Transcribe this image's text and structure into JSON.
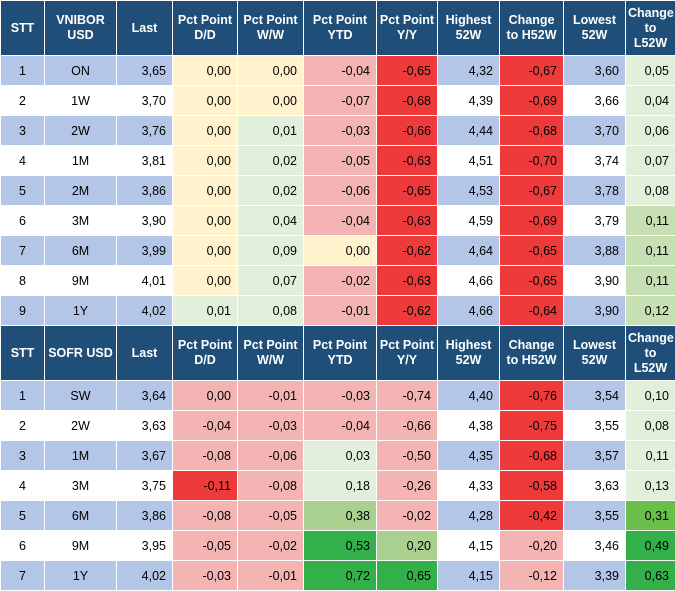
{
  "tables": [
    {
      "headers": [
        "STT",
        "VNIBOR USD",
        "Last",
        "Pct Point D/D",
        "Pct Point W/W",
        "Pct Point YTD",
        "Pct Point Y/Y",
        "Highest 52W",
        "Change to H52W",
        "Lowest 52W",
        "Change to L52W"
      ],
      "rows": [
        [
          "1",
          "ON",
          "3,65",
          "0,00",
          "0,00",
          "-0,04",
          "-0,65",
          "4,32",
          "-0,67",
          "3,60",
          "0,05"
        ],
        [
          "2",
          "1W",
          "3,70",
          "0,00",
          "0,00",
          "-0,07",
          "-0,68",
          "4,39",
          "-0,69",
          "3,66",
          "0,04"
        ],
        [
          "3",
          "2W",
          "3,76",
          "0,00",
          "0,01",
          "-0,03",
          "-0,66",
          "4,44",
          "-0,68",
          "3,70",
          "0,06"
        ],
        [
          "4",
          "1M",
          "3,81",
          "0,00",
          "0,02",
          "-0,05",
          "-0,63",
          "4,51",
          "-0,70",
          "3,74",
          "0,07"
        ],
        [
          "5",
          "2M",
          "3,86",
          "0,00",
          "0,02",
          "-0,06",
          "-0,65",
          "4,53",
          "-0,67",
          "3,78",
          "0,08"
        ],
        [
          "6",
          "3M",
          "3,90",
          "0,00",
          "0,04",
          "-0,04",
          "-0,63",
          "4,59",
          "-0,69",
          "3,79",
          "0,11"
        ],
        [
          "7",
          "6M",
          "3,99",
          "0,00",
          "0,09",
          "0,00",
          "-0,62",
          "4,64",
          "-0,65",
          "3,88",
          "0,11"
        ],
        [
          "8",
          "9M",
          "4,01",
          "0,00",
          "0,07",
          "-0,02",
          "-0,63",
          "4,66",
          "-0,65",
          "3,90",
          "0,11"
        ],
        [
          "9",
          "1Y",
          "4,02",
          "0,01",
          "0,08",
          "-0,01",
          "-0,62",
          "4,66",
          "-0,64",
          "3,90",
          "0,12"
        ]
      ],
      "colors": [
        [
          "#b4c6e7",
          "#b4c6e7",
          "#b4c6e7",
          "#fff2cc",
          "#fff2cc",
          "#f4b4b4",
          "#ee3a3a",
          "#b4c6e7",
          "#ee3a3a",
          "#b4c6e7",
          "#e2efda"
        ],
        [
          "#ffffff",
          "#ffffff",
          "#ffffff",
          "#fff2cc",
          "#fff2cc",
          "#f4b4b4",
          "#ee3a3a",
          "#ffffff",
          "#ee3a3a",
          "#ffffff",
          "#e2efda"
        ],
        [
          "#b4c6e7",
          "#b4c6e7",
          "#b4c6e7",
          "#fff2cc",
          "#e2efda",
          "#f4b4b4",
          "#ee3a3a",
          "#b4c6e7",
          "#ee3a3a",
          "#b4c6e7",
          "#e2efda"
        ],
        [
          "#ffffff",
          "#ffffff",
          "#ffffff",
          "#fff2cc",
          "#e2efda",
          "#f4b4b4",
          "#ee3a3a",
          "#ffffff",
          "#ee3a3a",
          "#ffffff",
          "#e2efda"
        ],
        [
          "#b4c6e7",
          "#b4c6e7",
          "#b4c6e7",
          "#fff2cc",
          "#e2efda",
          "#f4b4b4",
          "#ee3a3a",
          "#b4c6e7",
          "#ee3a3a",
          "#b4c6e7",
          "#e2efda"
        ],
        [
          "#ffffff",
          "#ffffff",
          "#ffffff",
          "#fff2cc",
          "#e2efda",
          "#f4b4b4",
          "#ee3a3a",
          "#ffffff",
          "#ee3a3a",
          "#ffffff",
          "#c6e0b4"
        ],
        [
          "#b4c6e7",
          "#b4c6e7",
          "#b4c6e7",
          "#fff2cc",
          "#e2efda",
          "#fff2cc",
          "#ee3a3a",
          "#b4c6e7",
          "#ee3a3a",
          "#b4c6e7",
          "#c6e0b4"
        ],
        [
          "#ffffff",
          "#ffffff",
          "#ffffff",
          "#fff2cc",
          "#e2efda",
          "#f4b4b4",
          "#ee3a3a",
          "#ffffff",
          "#ee3a3a",
          "#ffffff",
          "#c6e0b4"
        ],
        [
          "#b4c6e7",
          "#b4c6e7",
          "#b4c6e7",
          "#e2efda",
          "#e2efda",
          "#f4b4b4",
          "#ee3a3a",
          "#b4c6e7",
          "#ee3a3a",
          "#b4c6e7",
          "#c6e0b4"
        ]
      ]
    },
    {
      "headers": [
        "STT",
        "SOFR USD",
        "Last",
        "Pct Point D/D",
        "Pct Point W/W",
        "Pct Point YTD",
        "Pct Point Y/Y",
        "Highest 52W",
        "Change to H52W",
        "Lowest 52W",
        "Change to L52W"
      ],
      "rows": [
        [
          "1",
          "SW",
          "3,64",
          "0,00",
          "-0,01",
          "-0,03",
          "-0,74",
          "4,40",
          "-0,76",
          "3,54",
          "0,10"
        ],
        [
          "2",
          "2W",
          "3,63",
          "-0,04",
          "-0,03",
          "-0,04",
          "-0,66",
          "4,38",
          "-0,75",
          "3,55",
          "0,08"
        ],
        [
          "3",
          "1M",
          "3,67",
          "-0,08",
          "-0,06",
          "0,03",
          "-0,50",
          "4,35",
          "-0,68",
          "3,57",
          "0,11"
        ],
        [
          "4",
          "3M",
          "3,75",
          "-0,11",
          "-0,08",
          "0,18",
          "-0,26",
          "4,33",
          "-0,58",
          "3,63",
          "0,13"
        ],
        [
          "5",
          "6M",
          "3,86",
          "-0,08",
          "-0,05",
          "0,38",
          "-0,02",
          "4,28",
          "-0,42",
          "3,55",
          "0,31"
        ],
        [
          "6",
          "9M",
          "3,95",
          "-0,05",
          "-0,02",
          "0,53",
          "0,20",
          "4,15",
          "-0,20",
          "3,46",
          "0,49"
        ],
        [
          "7",
          "1Y",
          "4,02",
          "-0,03",
          "-0,01",
          "0,72",
          "0,65",
          "4,15",
          "-0,12",
          "3,39",
          "0,63"
        ]
      ],
      "colors": [
        [
          "#b4c6e7",
          "#b4c6e7",
          "#b4c6e7",
          "#f4b4b4",
          "#f4b4b4",
          "#f4b4b4",
          "#f4b4b4",
          "#b4c6e7",
          "#ee3a3a",
          "#b4c6e7",
          "#e2efda"
        ],
        [
          "#ffffff",
          "#ffffff",
          "#ffffff",
          "#f4b4b4",
          "#f4b4b4",
          "#f4b4b4",
          "#f4b4b4",
          "#ffffff",
          "#ee3a3a",
          "#ffffff",
          "#e2efda"
        ],
        [
          "#b4c6e7",
          "#b4c6e7",
          "#b4c6e7",
          "#f4b4b4",
          "#f4b4b4",
          "#e2efda",
          "#f4b4b4",
          "#b4c6e7",
          "#ee3a3a",
          "#b4c6e7",
          "#e2efda"
        ],
        [
          "#ffffff",
          "#ffffff",
          "#ffffff",
          "#ee3a3a",
          "#f4b4b4",
          "#e2efda",
          "#f4b4b4",
          "#ffffff",
          "#ee3a3a",
          "#ffffff",
          "#e2efda"
        ],
        [
          "#b4c6e7",
          "#b4c6e7",
          "#b4c6e7",
          "#f4b4b4",
          "#f4b4b4",
          "#a9d08e",
          "#f4b4b4",
          "#b4c6e7",
          "#ee3a3a",
          "#b4c6e7",
          "#6abf4b"
        ],
        [
          "#ffffff",
          "#ffffff",
          "#ffffff",
          "#f4b4b4",
          "#f4b4b4",
          "#33b04a",
          "#a9d08e",
          "#ffffff",
          "#f4b4b4",
          "#ffffff",
          "#33b04a"
        ],
        [
          "#b4c6e7",
          "#b4c6e7",
          "#b4c6e7",
          "#f4b4b4",
          "#f4b4b4",
          "#33b04a",
          "#33b04a",
          "#b4c6e7",
          "#f4b4b4",
          "#b4c6e7",
          "#33b04a"
        ]
      ]
    }
  ]
}
